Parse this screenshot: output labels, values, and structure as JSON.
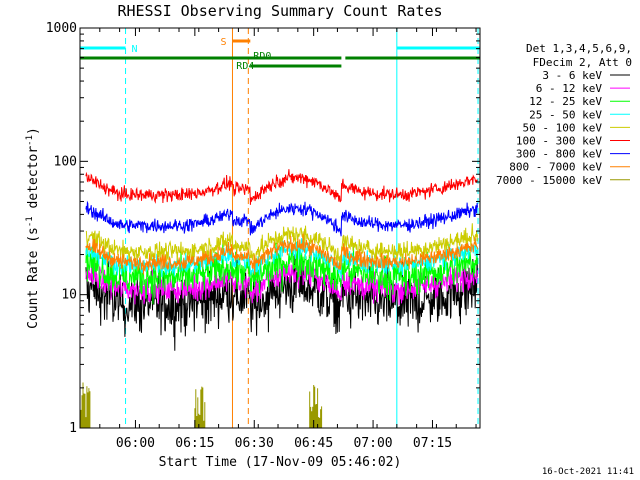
{
  "chart_data": {
    "type": "line",
    "title": "RHESSI Observing Summary Count Rates",
    "xlabel": "Start Time (17-Nov-09 05:46:02)",
    "ylabel_main": "Count Rate (s",
    "ylabel_sup": "-1",
    "ylabel_mid": " detector",
    "ylabel_end": ")",
    "yscale": "log",
    "ylim": [
      1,
      1000
    ],
    "xlim_minutes": [
      0,
      101
    ],
    "y_ticks": [
      {
        "value": 1,
        "label": "1"
      },
      {
        "value": 10,
        "label": "10"
      },
      {
        "value": 100,
        "label": "100"
      },
      {
        "value": 1000,
        "label": "1000"
      }
    ],
    "x_ticks": [
      {
        "minute": 14,
        "label": "06:00"
      },
      {
        "minute": 29,
        "label": "06:15"
      },
      {
        "minute": 44,
        "label": "06:30"
      },
      {
        "minute": 59,
        "label": "06:45"
      },
      {
        "minute": 74,
        "label": "07:00"
      },
      {
        "minute": 89,
        "label": "07:15"
      }
    ],
    "legend": {
      "header": [
        "Det 1,3,4,5,6,9,",
        "FDecim 2, Att 0"
      ],
      "position": "right"
    },
    "series": [
      {
        "name": "3 - 6 keV",
        "color": "#000000",
        "base": 8.5,
        "noise": 0.22
      },
      {
        "name": "6 - 12 keV",
        "color": "#ff00ff",
        "base": 11.0,
        "noise": 0.1
      },
      {
        "name": "12 - 25 keV",
        "color": "#00ff00",
        "base": 13.5,
        "noise": 0.14
      },
      {
        "name": "25 - 50 keV",
        "color": "#00ffff",
        "base": 16.5,
        "noise": 0.07
      },
      {
        "name": "50 - 100 keV",
        "color": "#cccc00",
        "base": 21.0,
        "noise": 0.07
      },
      {
        "name": "100 - 300 keV",
        "color": "#ff0000",
        "base": 56.0,
        "noise": 0.05
      },
      {
        "name": "300 - 800 keV",
        "color": "#0000ff",
        "base": 33.0,
        "noise": 0.05
      },
      {
        "name": "800 - 7000 keV",
        "color": "#ff8000",
        "base": 17.5,
        "noise": 0.06
      },
      {
        "name": "7000 - 15000 keV",
        "color": "#999900",
        "base": 1.0,
        "noise": 0
      }
    ],
    "flags": {
      "night_label": "N",
      "saa_label": "S",
      "rd0_label": "RD0",
      "rd4_label": "RD4",
      "night_intervals_minutes": [
        [
          0,
          11.5
        ],
        [
          80,
          101
        ]
      ],
      "saa_interval_minutes": [
        38.5,
        43
      ],
      "rd0_intervals_minutes": [
        [
          0,
          66
        ],
        [
          67,
          101
        ]
      ],
      "rd4_interval_minutes": [
        43,
        66
      ],
      "cyan_solid_lines_minutes": [
        0,
        80
      ],
      "cyan_dashed_lines_minutes": [
        11.5,
        100.5
      ],
      "orange_solid_line_minutes": 38.5,
      "orange_dashed_line_minutes": 42.5
    },
    "footer_date": "16-Oct-2021 11:41",
    "colors": {
      "night": "#00ffff",
      "saa": "#ff8000",
      "rd": "#008000",
      "background": "#ffffff",
      "axis": "#000000"
    }
  }
}
